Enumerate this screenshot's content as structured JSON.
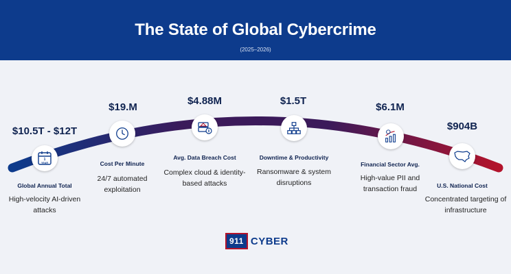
{
  "header": {
    "title": "The State of Global Cybercrime",
    "subtitle": "(2025–2026)"
  },
  "colors": {
    "header_bg": "#0d3b8c",
    "arc_start": "#0d3b8c",
    "arc_mid": "#3b1a5a",
    "arc_end": "#b3132b"
  },
  "milestones": [
    {
      "value": "$10.5T - $12T",
      "label": "Global Annual Total",
      "desc": "High-velocity AI-driven attacks",
      "icon": "calendar-icon",
      "icon_text": "1 YEAR"
    },
    {
      "value": "$19.M",
      "label": "Cost Per Minute",
      "desc": "24/7 automated exploitation",
      "icon": "clock-icon"
    },
    {
      "value": "$4.88M",
      "label": "Avg. Data Breach Cost",
      "desc": "Complex cloud & identity-based attacks",
      "icon": "breach-server-icon"
    },
    {
      "value": "$1.5T",
      "label": "Downtime & Productivity",
      "desc": "Ransomware & system disruptions",
      "icon": "network-icon"
    },
    {
      "value": "$6.1M",
      "label": "Financial Sector Avg.",
      "desc": "High-value PII and transaction fraud",
      "icon": "finance-chart-icon"
    },
    {
      "value": "$904B",
      "label": "U.S. National Cost",
      "desc": "Concentrated targeting of infrastructure",
      "icon": "usa-map-icon"
    }
  ],
  "logo": {
    "number": "911",
    "text": "CYBER"
  }
}
